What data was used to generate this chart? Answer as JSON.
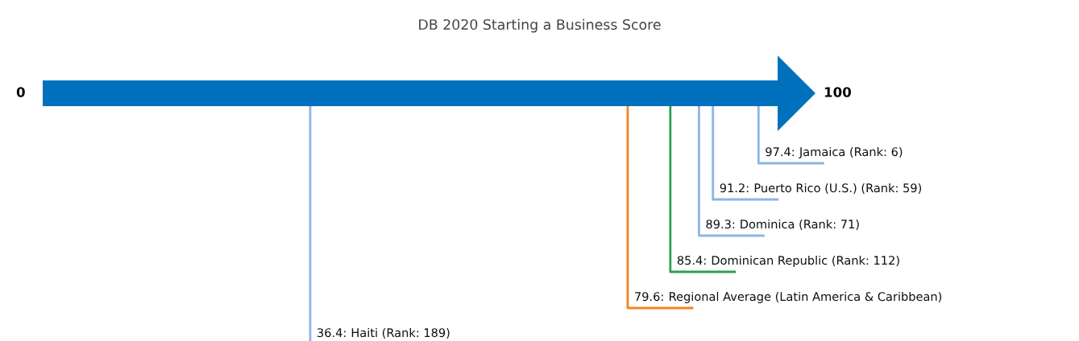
{
  "chart_data": {
    "type": "other",
    "title": "DB 2020 Starting a Business Score",
    "categories": [
      "Jamaica (Rank: 6)",
      "Puerto Rico (U.S.) (Rank: 59)",
      "Dominica (Rank: 71)",
      "Dominican Republic (Rank: 112)",
      "Regional Average (Latin America & Caribbean)",
      "Haiti (Rank: 189)"
    ],
    "values": [
      97.4,
      91.2,
      89.3,
      85.4,
      79.6,
      36.4
    ],
    "value_labels": [
      "97.4:",
      "91.2:",
      "89.3:",
      "85.4:",
      "79.6:",
      "36.4:"
    ],
    "colors": [
      "#8db4e8",
      "#8db4e8",
      "#8db4e8",
      "#2ca04c",
      "#f28522",
      "#8db4e8"
    ],
    "annotations": [
      "0",
      "100"
    ]
  }
}
